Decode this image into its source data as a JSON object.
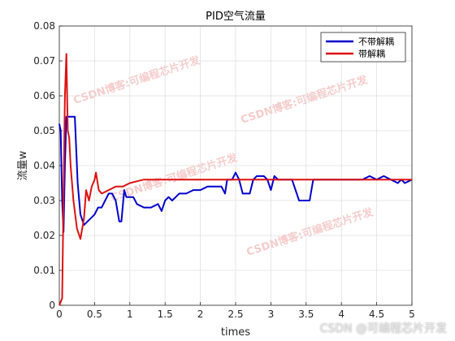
{
  "chart_data": {
    "type": "line",
    "title": "PID空气流量",
    "xlabel": "times",
    "ylabel": "流量w",
    "xlim": [
      0,
      5
    ],
    "ylim": [
      0,
      0.08
    ],
    "xticks": [
      0,
      0.5,
      1,
      1.5,
      2,
      2.5,
      3,
      3.5,
      4,
      4.5,
      5
    ],
    "xtick_labels": [
      "0",
      "0.5",
      "1",
      "1.5",
      "2",
      "2.5",
      "3",
      "3.5",
      "4",
      "4.5",
      "5"
    ],
    "yticks": [
      0,
      0.01,
      0.02,
      0.03,
      0.04,
      0.05,
      0.06,
      0.07,
      0.08
    ],
    "ytick_labels": [
      "0",
      "0.01",
      "0.02",
      "0.03",
      "0.04",
      "0.05",
      "0.06",
      "0.07",
      "0.08"
    ],
    "grid": true,
    "legend_position": "top-right",
    "series": [
      {
        "name": "不带解耦",
        "color": "#0000cc",
        "points": [
          [
            0,
            0.052
          ],
          [
            0.02,
            0.05
          ],
          [
            0.04,
            0.03
          ],
          [
            0.06,
            0.021
          ],
          [
            0.08,
            0.04
          ],
          [
            0.1,
            0.054
          ],
          [
            0.2,
            0.054
          ],
          [
            0.22,
            0.054
          ],
          [
            0.26,
            0.035
          ],
          [
            0.3,
            0.026
          ],
          [
            0.35,
            0.023
          ],
          [
            0.4,
            0.024
          ],
          [
            0.5,
            0.026
          ],
          [
            0.55,
            0.028
          ],
          [
            0.6,
            0.028
          ],
          [
            0.65,
            0.03
          ],
          [
            0.7,
            0.032
          ],
          [
            0.75,
            0.032
          ],
          [
            0.8,
            0.03
          ],
          [
            0.85,
            0.024
          ],
          [
            0.88,
            0.024
          ],
          [
            0.92,
            0.033
          ],
          [
            0.95,
            0.031
          ],
          [
            1.0,
            0.031
          ],
          [
            1.05,
            0.031
          ],
          [
            1.1,
            0.029
          ],
          [
            1.2,
            0.028
          ],
          [
            1.3,
            0.028
          ],
          [
            1.4,
            0.029
          ],
          [
            1.45,
            0.027
          ],
          [
            1.5,
            0.03
          ],
          [
            1.55,
            0.031
          ],
          [
            1.6,
            0.03
          ],
          [
            1.7,
            0.032
          ],
          [
            1.8,
            0.032
          ],
          [
            1.9,
            0.033
          ],
          [
            2.0,
            0.033
          ],
          [
            2.1,
            0.034
          ],
          [
            2.2,
            0.034
          ],
          [
            2.3,
            0.034
          ],
          [
            2.35,
            0.032
          ],
          [
            2.38,
            0.036
          ],
          [
            2.45,
            0.036
          ],
          [
            2.5,
            0.038
          ],
          [
            2.55,
            0.036
          ],
          [
            2.6,
            0.032
          ],
          [
            2.7,
            0.032
          ],
          [
            2.75,
            0.036
          ],
          [
            2.8,
            0.037
          ],
          [
            2.9,
            0.037
          ],
          [
            2.95,
            0.036
          ],
          [
            3.0,
            0.033
          ],
          [
            3.05,
            0.037
          ],
          [
            3.1,
            0.036
          ],
          [
            3.2,
            0.036
          ],
          [
            3.3,
            0.036
          ],
          [
            3.4,
            0.03
          ],
          [
            3.55,
            0.03
          ],
          [
            3.6,
            0.036
          ],
          [
            3.7,
            0.036
          ],
          [
            3.9,
            0.036
          ],
          [
            4.0,
            0.036
          ],
          [
            4.2,
            0.036
          ],
          [
            4.3,
            0.036
          ],
          [
            4.4,
            0.037
          ],
          [
            4.5,
            0.036
          ],
          [
            4.6,
            0.037
          ],
          [
            4.7,
            0.036
          ],
          [
            4.8,
            0.035
          ],
          [
            4.85,
            0.036
          ],
          [
            4.9,
            0.035
          ],
          [
            5.0,
            0.036
          ]
        ]
      },
      {
        "name": "带解耦",
        "color": "#dd1111",
        "points": [
          [
            0,
            0.0
          ],
          [
            0.04,
            0.002
          ],
          [
            0.08,
            0.06
          ],
          [
            0.1,
            0.072
          ],
          [
            0.12,
            0.05
          ],
          [
            0.14,
            0.048
          ],
          [
            0.16,
            0.04
          ],
          [
            0.2,
            0.03
          ],
          [
            0.25,
            0.022
          ],
          [
            0.3,
            0.019
          ],
          [
            0.35,
            0.025
          ],
          [
            0.38,
            0.033
          ],
          [
            0.42,
            0.03
          ],
          [
            0.46,
            0.034
          ],
          [
            0.5,
            0.036
          ],
          [
            0.52,
            0.038
          ],
          [
            0.56,
            0.033
          ],
          [
            0.6,
            0.032
          ],
          [
            0.7,
            0.033
          ],
          [
            0.8,
            0.034
          ],
          [
            0.9,
            0.034
          ],
          [
            1.0,
            0.035
          ],
          [
            1.1,
            0.0355
          ],
          [
            1.2,
            0.036
          ],
          [
            1.5,
            0.036
          ],
          [
            2.0,
            0.036
          ],
          [
            2.5,
            0.036
          ],
          [
            3.0,
            0.036
          ],
          [
            3.5,
            0.036
          ],
          [
            4.0,
            0.036
          ],
          [
            4.5,
            0.036
          ],
          [
            5.0,
            0.036
          ]
        ]
      }
    ]
  },
  "watermarks": [
    "CSDN博客:可编程芯片开发",
    "CSDN博客:可编程芯片开发",
    "CSDN博客:可编程芯片开发",
    "CSDN博客:可编程芯片开发"
  ],
  "credit": "CSDN @可编程芯片开发"
}
